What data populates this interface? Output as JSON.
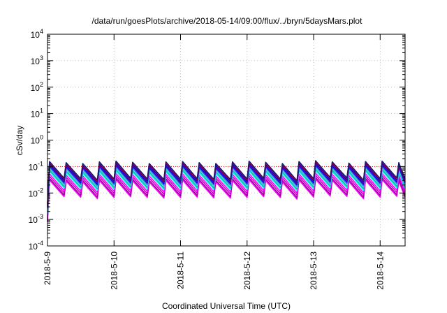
{
  "chart_data": {
    "type": "line",
    "title": "/data/run/goesPlots/archive/2018-05-14/09:00/flux/../bryn/5daysMars.plot",
    "xlabel": "Coordinated Universal Time (UTC)",
    "ylabel": "cSv/day",
    "yscale": "log",
    "ylim": [
      0.0001,
      10000
    ],
    "xlim": [
      "2018-05-09T00:00",
      "2018-05-14T09:00"
    ],
    "x_ticks": [
      "2018-5-9",
      "2018-5-10",
      "2018-5-11",
      "2018-5-12",
      "2018-5-13",
      "2018-5-14"
    ],
    "y_ticks": [
      {
        "base": "10",
        "exp": "-4",
        "value": 0.0001
      },
      {
        "base": "10",
        "exp": "-3",
        "value": 0.001
      },
      {
        "base": "10",
        "exp": "-2",
        "value": 0.01
      },
      {
        "base": "10",
        "exp": "-1",
        "value": 0.1
      },
      {
        "base": "10",
        "exp": "0",
        "value": 1
      },
      {
        "base": "10",
        "exp": "1",
        "value": 10
      },
      {
        "base": "10",
        "exp": "2",
        "value": 100
      },
      {
        "base": "10",
        "exp": "3",
        "value": 1000
      },
      {
        "base": "10",
        "exp": "4",
        "value": 10000
      }
    ],
    "grid": true,
    "reference_line": {
      "value": 0.1,
      "color": "#ff0000",
      "style": "dotted"
    },
    "pattern": {
      "sawtooth_period_hours": 6,
      "n_cycles": 22,
      "peaks": [
        0.155,
        0.14,
        0.13,
        0.15,
        0.16,
        0.145,
        0.13,
        0.15,
        0.155,
        0.14,
        0.13,
        0.15,
        0.16,
        0.145,
        0.13,
        0.155,
        0.165,
        0.15,
        0.135,
        0.155,
        0.16,
        0.14
      ],
      "trough_factors": [
        0.52,
        0.55,
        0.52,
        0.5,
        0.5,
        0.52,
        0.55,
        0.5,
        0.5,
        0.52,
        0.55,
        0.5,
        0.5,
        0.52,
        0.5,
        0.5,
        0.52,
        0.55,
        0.5,
        0.5,
        0.52,
        0.55
      ],
      "start_level": 0.004
    },
    "series": [
      {
        "color": "#ff00ff",
        "scale": 0.2
      },
      {
        "color": "#9b009b",
        "scale": 0.23
      },
      {
        "color": "#cc00cc",
        "scale": 0.28
      },
      {
        "color": "#ff00ff",
        "scale": 0.34
      },
      {
        "color": "#00ffff",
        "scale": 0.42
      },
      {
        "color": "#20b2aa",
        "scale": 0.48
      },
      {
        "color": "#40e0d0",
        "scale": 0.55
      },
      {
        "color": "#4169e1",
        "scale": 0.62
      },
      {
        "color": "#0000ff",
        "scale": 0.7
      },
      {
        "color": "#800080",
        "scale": 0.78
      },
      {
        "color": "#0000cd",
        "scale": 0.86
      },
      {
        "color": "#ff0000",
        "scale": 0.95
      },
      {
        "color": "#191970",
        "scale": 1.0
      }
    ]
  }
}
